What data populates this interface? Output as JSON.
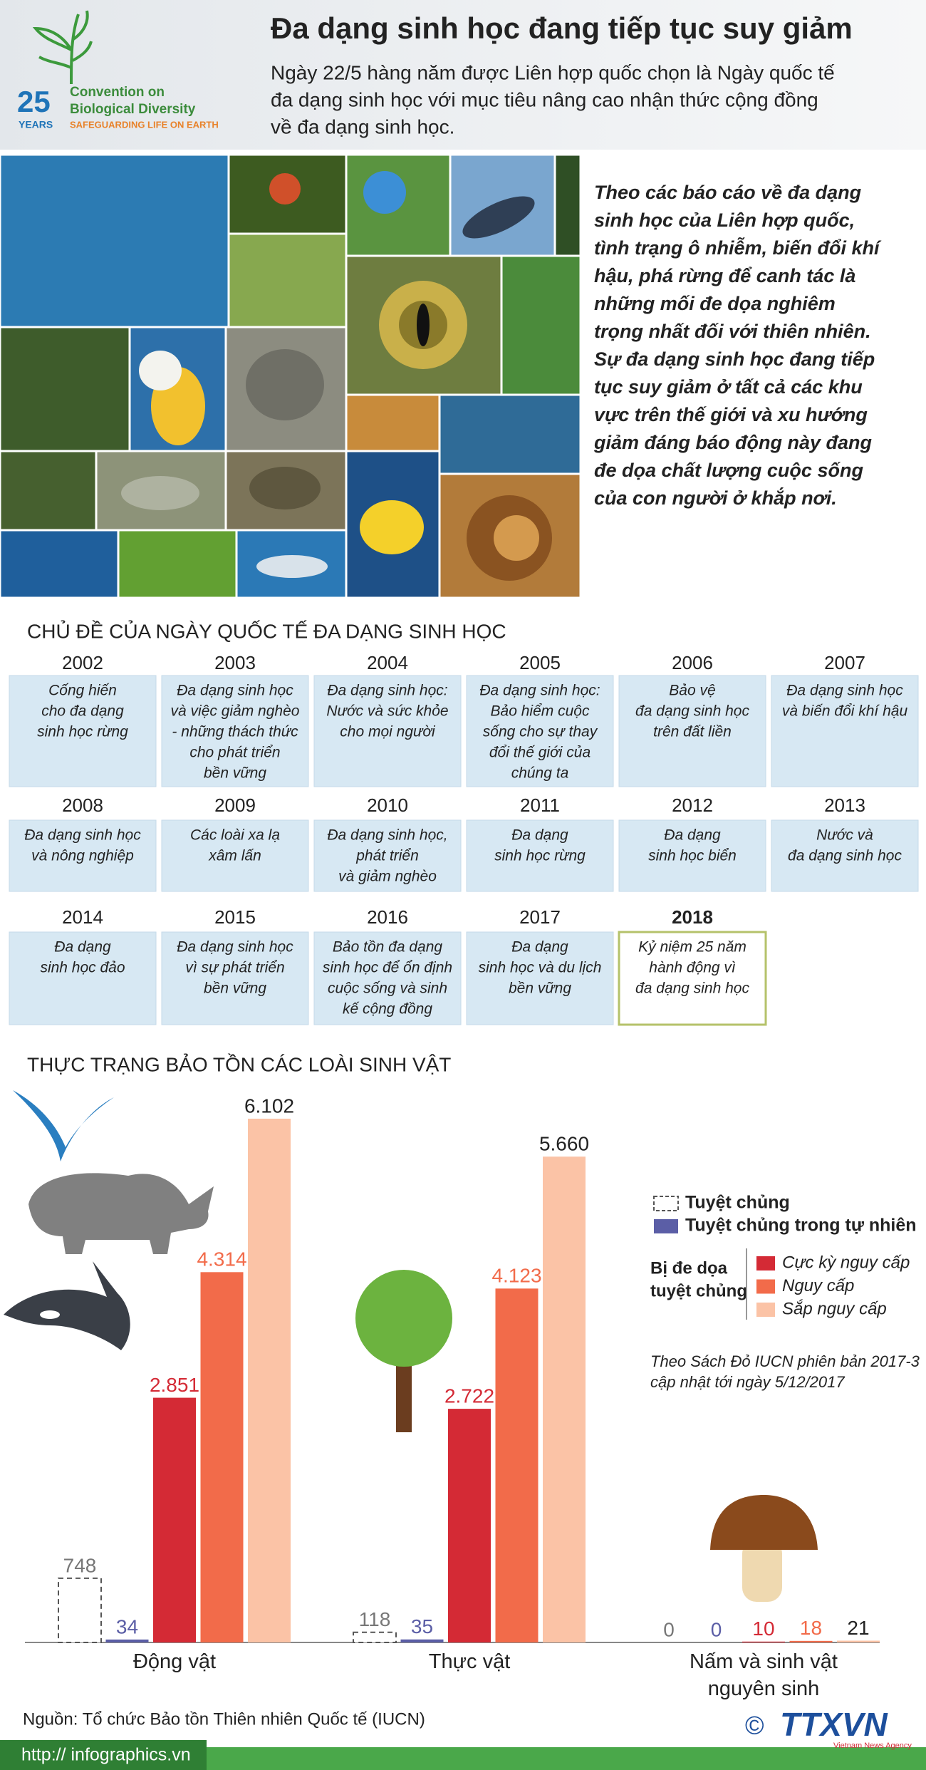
{
  "header": {
    "logo": {
      "number": "25",
      "years": "YEARS",
      "line1": "Convention on",
      "line2": "Biological Diversity",
      "tagline": "SAFEGUARDING LIFE ON EARTH"
    },
    "title": "Đa dạng sinh học đang tiếp tục suy giảm",
    "subtitle_lines": [
      "Ngày 22/5 hàng năm được Liên hợp quốc chọn là Ngày quốc tế",
      "đa dạng sinh học với mục tiêu nâng cao nhận thức cộng đồng",
      "về đa dạng sinh học."
    ]
  },
  "intro_lines": [
    "Theo các báo cáo về đa dạng",
    "sinh học của Liên hợp quốc,",
    "tình trạng ô nhiễm, biến đổi khí",
    "hậu, phá rừng để canh tác là",
    "những mối đe dọa nghiêm",
    "trọng nhất đối với thiên nhiên.",
    "Sự đa dạng sinh học đang tiếp",
    "tục suy giảm ở tất cả các khu",
    "vực trên thế giới và xu hướng",
    "giảm đáng báo động này đang",
    "đe dọa chất lượng cuộc sống",
    "của con người ở khắp nơi."
  ],
  "themes": {
    "title": "CHỦ ĐỀ CỦA NGÀY QUỐC TẾ ĐA DẠNG SINH HỌC",
    "items": [
      {
        "year": "2002",
        "lines": [
          "Cống hiến",
          "cho đa dạng",
          "sinh học rừng"
        ]
      },
      {
        "year": "2003",
        "lines": [
          "Đa dạng sinh học",
          "và việc giảm nghèo",
          "- những thách thức",
          "cho phát triển",
          "bền vững"
        ]
      },
      {
        "year": "2004",
        "lines": [
          "Đa dạng sinh học:",
          "Nước và sức khỏe",
          "cho mọi người"
        ]
      },
      {
        "year": "2005",
        "lines": [
          "Đa dạng sinh học:",
          "Bảo hiểm cuộc",
          "sống cho sự thay",
          "đổi thế giới của",
          "chúng ta"
        ]
      },
      {
        "year": "2006",
        "lines": [
          "Bảo vệ",
          "đa dạng sinh học",
          "trên đất liền"
        ]
      },
      {
        "year": "2007",
        "lines": [
          "Đa dạng sinh học",
          "và biến đổi khí hậu"
        ]
      },
      {
        "year": "2008",
        "lines": [
          "Đa dạng sinh học",
          "và nông nghiệp"
        ]
      },
      {
        "year": "2009",
        "lines": [
          "Các loài xa lạ",
          "xâm lấn"
        ]
      },
      {
        "year": "2010",
        "lines": [
          "Đa dạng sinh học,",
          "phát triển",
          "và giảm nghèo"
        ]
      },
      {
        "year": "2011",
        "lines": [
          "Đa dạng",
          "sinh học rừng"
        ]
      },
      {
        "year": "2012",
        "lines": [
          "Đa dạng",
          "sinh học biển"
        ]
      },
      {
        "year": "2013",
        "lines": [
          "Nước và",
          "đa dạng sinh học"
        ]
      },
      {
        "year": "2014",
        "lines": [
          "Đa dạng",
          "sinh học đảo"
        ]
      },
      {
        "year": "2015",
        "lines": [
          "Đa dạng sinh học",
          "vì sự phát triển",
          "bền vững"
        ]
      },
      {
        "year": "2016",
        "lines": [
          "Bảo tồn đa dạng",
          "sinh học để ổn định",
          "cuộc sống và sinh",
          "kế cộng đồng"
        ]
      },
      {
        "year": "2017",
        "lines": [
          "Đa dạng",
          "sinh học và du lịch",
          "bền vững"
        ]
      },
      {
        "year": "2018",
        "lines": [
          "Kỷ niệm 25 năm",
          "hành động vì",
          "đa dạng sinh học"
        ],
        "highlight": true
      }
    ]
  },
  "chart_data": {
    "type": "bar",
    "title": "THỰC TRẠNG BẢO TỒN CÁC LOÀI SINH VẬT",
    "categories": [
      "Động vật",
      "Thực vật",
      "Nấm và sinh vật nguyên sinh"
    ],
    "ylim": [
      0,
      6500
    ],
    "series": [
      {
        "name": "Tuyệt chủng",
        "color": "#ffffff",
        "stroke_style": "dashed",
        "label_color": "#777777",
        "values": [
          748,
          118,
          0
        ],
        "value_labels": [
          "748",
          "118",
          "0"
        ]
      },
      {
        "name": "Tuyệt chủng trong tự nhiên",
        "color": "#5b5ea6",
        "label_color": "#5b5ea6",
        "values": [
          34,
          35,
          0
        ],
        "value_labels": [
          "34",
          "35",
          "0"
        ]
      },
      {
        "name": "Cực kỳ nguy cấp",
        "color": "#d42a35",
        "label_color": "#d42a35",
        "values": [
          2851,
          2722,
          10
        ],
        "value_labels": [
          "2.851",
          "2.722",
          "10"
        ]
      },
      {
        "name": "Nguy cấp",
        "color": "#f26b4a",
        "label_color": "#f26b4a",
        "values": [
          4314,
          4123,
          18
        ],
        "value_labels": [
          "4.314",
          "4.123",
          "18"
        ]
      },
      {
        "name": "Sắp nguy cấp",
        "color": "#fbc3a6",
        "label_color": "#222222",
        "values": [
          6102,
          5660,
          21
        ],
        "value_labels": [
          "6.102",
          "5.660",
          "21"
        ]
      }
    ],
    "legend_group_title": [
      "Bị đe dọa",
      "tuyệt chủng"
    ],
    "note_lines": [
      "Theo Sách Đỏ IUCN phiên bản 2017-3",
      "cập nhật tới ngày 5/12/2017"
    ]
  },
  "footer": {
    "source": "Nguồn: Tổ chức Bảo tồn Thiên nhiên Quốc tế (IUCN)",
    "url": "http:// infographics.vn",
    "copyright": "©",
    "logo": "TTXVN",
    "agency": "Vietnam News Agency"
  }
}
